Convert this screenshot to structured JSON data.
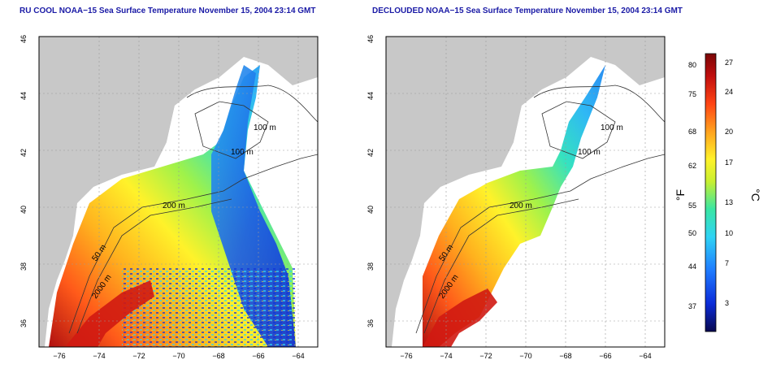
{
  "panel_left": {
    "title": "RU COOL NOAA−15 Sea Surface Temperature November 15, 2004 23:14 GMT",
    "contour_labels": [
      "100 m",
      "100 m",
      "200 m",
      "50 m",
      "2000 m"
    ]
  },
  "panel_right": {
    "title": "DECLOUDED NOAA−15 Sea Surface Temperature November 15, 2004 23:14 GMT",
    "contour_labels": [
      "100 m",
      "100 m",
      "200 m",
      "50 m",
      "2000 m"
    ]
  },
  "axes": {
    "x_ticks": [
      "−76",
      "−74",
      "−72",
      "−70",
      "−68",
      "−66",
      "−64"
    ],
    "y_ticks": [
      "46",
      "44",
      "42",
      "40",
      "38",
      "36"
    ],
    "x_range": [
      -77,
      -63
    ],
    "y_range": [
      35,
      46
    ]
  },
  "colorbar": {
    "unit_left": "°F",
    "unit_right": "°C",
    "fahrenheit_ticks": [
      "80",
      "75",
      "68",
      "62",
      "55",
      "50",
      "44",
      "37"
    ],
    "celsius_ticks": [
      "27",
      "24",
      "20",
      "17",
      "13",
      "10",
      "7",
      "3"
    ],
    "colors": [
      "#08084f",
      "#0b2bd8",
      "#1f7bff",
      "#2fd3f5",
      "#39e6a4",
      "#c8f030",
      "#fff22a",
      "#ffa21e",
      "#ff4414",
      "#c00e0e",
      "#7a0606"
    ]
  },
  "colors": {
    "land": "#c8c8c8",
    "no_data": "#ffffff",
    "title": "#1a1aa6"
  }
}
